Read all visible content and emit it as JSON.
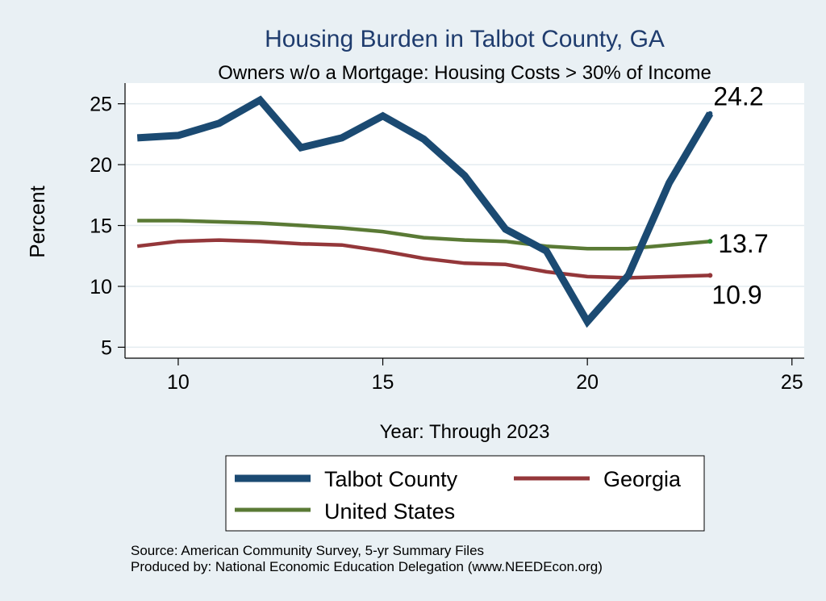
{
  "colors": {
    "background": "#e9f0f4",
    "plot_background": "#ffffff",
    "grid": "#e4ecf0",
    "axis": "#000000",
    "title": "#1f3c6e",
    "talbot": "#1b4a72",
    "georgia": "#94373a",
    "us": "#5a7a35"
  },
  "chart_data": {
    "type": "line",
    "title": "Housing Burden in Talbot County, GA",
    "subtitle": "Owners w/o a Mortgage: Housing Costs > 30% of Income",
    "xlabel": "Year: Through 2023",
    "ylabel": "Percent",
    "xlim": [
      8.7,
      25.3
    ],
    "ylim": [
      4.1,
      26.7
    ],
    "xticks": [
      10,
      15,
      20,
      25
    ],
    "yticks": [
      5,
      10,
      15,
      20,
      25
    ],
    "grid": true,
    "x": [
      9,
      10,
      11,
      12,
      13,
      14,
      15,
      16,
      17,
      18,
      19,
      20,
      21,
      22,
      23
    ],
    "series": [
      {
        "name": "Talbot County",
        "key": "talbot",
        "values": [
          22.2,
          22.4,
          23.4,
          25.3,
          21.4,
          22.2,
          24.0,
          22.1,
          19.1,
          14.7,
          12.9,
          7.1,
          10.9,
          18.5,
          24.2
        ],
        "end_label": "24.2"
      },
      {
        "name": "Georgia",
        "key": "georgia",
        "values": [
          13.3,
          13.7,
          13.8,
          13.7,
          13.5,
          13.4,
          12.9,
          12.3,
          11.9,
          11.8,
          11.2,
          10.8,
          10.7,
          10.8,
          10.9
        ],
        "end_label": "10.9"
      },
      {
        "name": "United States",
        "key": "us",
        "values": [
          15.4,
          15.4,
          15.3,
          15.2,
          15.0,
          14.8,
          14.5,
          14.0,
          13.8,
          13.7,
          13.3,
          13.1,
          13.1,
          13.4,
          13.7
        ],
        "end_label": "13.7"
      }
    ],
    "legend": {
      "placement": "bottom",
      "entries": [
        "Talbot County",
        "Georgia",
        "United States"
      ]
    },
    "notes": [
      "Source: American Community Survey, 5-yr Summary Files",
      "Produced by: National Economic Education Delegation (www.NEEDEcon.org)"
    ]
  }
}
